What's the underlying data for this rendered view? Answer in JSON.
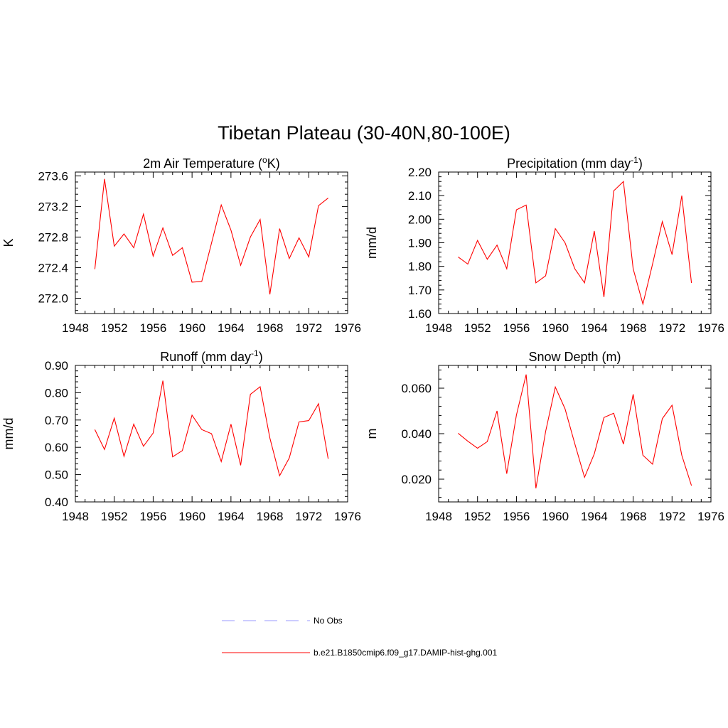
{
  "figure": {
    "title": "Tibetan Plateau (30-40N,80-100E)"
  },
  "legend": {
    "placement": "bottom-center",
    "items": [
      {
        "label": "No Obs",
        "color": "#9999ff",
        "dash": true
      },
      {
        "label": "b.e21.B1850cmip6.f09_g17.DAMIP-hist-ghg.001",
        "color": "#ff0000",
        "dash": false
      }
    ]
  },
  "chart_data": [
    {
      "type": "line",
      "title": "2m Air Temperature (oK)",
      "title_parts": {
        "pre": "2m Air Temperature (",
        "sup": "o",
        "post": "K)"
      },
      "ylabel": "K",
      "xlim": [
        1948,
        1976
      ],
      "ylim": [
        271.8,
        273.65
      ],
      "x_ticks": [
        1948,
        1952,
        1956,
        1960,
        1964,
        1968,
        1972,
        1976
      ],
      "x_tick_labels": [
        "1948",
        "1952",
        "1956",
        "1960",
        "1964",
        "1968",
        "1972",
        "1976"
      ],
      "y_ticks": [
        272.0,
        272.4,
        272.8,
        273.2,
        273.6
      ],
      "y_tick_labels": [
        "272.0",
        "272.4",
        "272.8",
        "273.2",
        "273.6"
      ],
      "color": "#ff0000",
      "x": [
        1950,
        1951,
        1952,
        1953,
        1954,
        1955,
        1956,
        1957,
        1958,
        1959,
        1960,
        1961,
        1962,
        1963,
        1964,
        1965,
        1966,
        1967,
        1968,
        1969,
        1970,
        1971,
        1972,
        1973,
        1974
      ],
      "y": [
        272.38,
        273.56,
        272.68,
        272.84,
        272.66,
        273.1,
        272.55,
        272.92,
        272.56,
        272.66,
        272.21,
        272.22,
        272.72,
        273.22,
        272.89,
        272.43,
        272.8,
        273.03,
        272.05,
        272.91,
        272.52,
        272.79,
        272.54,
        273.21,
        273.31
      ]
    },
    {
      "type": "line",
      "title": "Precipitation (mm day-1)",
      "title_parts": {
        "pre": "Precipitation (mm day",
        "sup": "-1",
        "post": ")"
      },
      "ylabel": "mm/d",
      "xlim": [
        1948,
        1976
      ],
      "ylim": [
        1.6,
        2.2
      ],
      "x_ticks": [
        1948,
        1952,
        1956,
        1960,
        1964,
        1968,
        1972,
        1976
      ],
      "x_tick_labels": [
        "1948",
        "1952",
        "1956",
        "1960",
        "1964",
        "1968",
        "1972",
        "1976"
      ],
      "y_ticks": [
        1.6,
        1.7,
        1.8,
        1.9,
        2.0,
        2.1,
        2.2
      ],
      "y_tick_labels": [
        "1.60",
        "1.70",
        "1.80",
        "1.90",
        "2.00",
        "2.10",
        "2.20"
      ],
      "color": "#ff0000",
      "x": [
        1950,
        1951,
        1952,
        1953,
        1954,
        1955,
        1956,
        1957,
        1958,
        1959,
        1960,
        1961,
        1962,
        1963,
        1964,
        1965,
        1966,
        1967,
        1968,
        1969,
        1970,
        1971,
        1972,
        1973,
        1974
      ],
      "y": [
        1.84,
        1.81,
        1.91,
        1.83,
        1.89,
        1.79,
        2.04,
        2.06,
        1.73,
        1.76,
        1.96,
        1.9,
        1.79,
        1.73,
        1.95,
        1.67,
        2.12,
        2.16,
        1.79,
        1.64,
        1.81,
        1.99,
        1.85,
        2.1,
        1.73
      ]
    },
    {
      "type": "line",
      "title": "Runoff (mm day-1)",
      "title_parts": {
        "pre": "Runoff (mm day",
        "sup": "-1",
        "post": ")"
      },
      "ylabel": "mm/d",
      "xlim": [
        1948,
        1976
      ],
      "ylim": [
        0.4,
        0.9
      ],
      "x_ticks": [
        1948,
        1952,
        1956,
        1960,
        1964,
        1968,
        1972,
        1976
      ],
      "x_tick_labels": [
        "1948",
        "1952",
        "1956",
        "1960",
        "1964",
        "1968",
        "1972",
        "1976"
      ],
      "y_ticks": [
        0.4,
        0.5,
        0.6,
        0.7,
        0.8,
        0.9
      ],
      "y_tick_labels": [
        "0.40",
        "0.50",
        "0.60",
        "0.70",
        "0.80",
        "0.90"
      ],
      "color": "#ff0000",
      "x": [
        1950,
        1951,
        1952,
        1953,
        1954,
        1955,
        1956,
        1957,
        1958,
        1959,
        1960,
        1961,
        1962,
        1963,
        1964,
        1965,
        1966,
        1967,
        1968,
        1969,
        1970,
        1971,
        1972,
        1973,
        1974
      ],
      "y": [
        0.665,
        0.592,
        0.707,
        0.567,
        0.685,
        0.604,
        0.652,
        0.844,
        0.565,
        0.588,
        0.718,
        0.665,
        0.65,
        0.548,
        0.685,
        0.534,
        0.794,
        0.822,
        0.634,
        0.496,
        0.561,
        0.693,
        0.698,
        0.76,
        0.558
      ]
    },
    {
      "type": "line",
      "title": "Snow Depth (m)",
      "title_parts": {
        "pre": "Snow Depth (m)",
        "sup": "",
        "post": ""
      },
      "ylabel": "m",
      "xlim": [
        1948,
        1976
      ],
      "ylim": [
        0.01,
        0.07
      ],
      "x_ticks": [
        1948,
        1952,
        1956,
        1960,
        1964,
        1968,
        1972,
        1976
      ],
      "x_tick_labels": [
        "1948",
        "1952",
        "1956",
        "1960",
        "1964",
        "1968",
        "1972",
        "1976"
      ],
      "y_ticks": [
        0.02,
        0.04,
        0.06
      ],
      "y_tick_labels": [
        "0.020",
        "0.040",
        "0.060"
      ],
      "color": "#ff0000",
      "x": [
        1950,
        1951,
        1952,
        1953,
        1954,
        1955,
        1956,
        1957,
        1958,
        1959,
        1960,
        1961,
        1962,
        1963,
        1964,
        1965,
        1966,
        1967,
        1968,
        1969,
        1970,
        1971,
        1972,
        1973,
        1974
      ],
      "y": [
        0.0402,
        0.0367,
        0.0336,
        0.0365,
        0.05,
        0.0224,
        0.0482,
        0.066,
        0.016,
        0.041,
        0.0605,
        0.0509,
        0.0356,
        0.0208,
        0.0311,
        0.0471,
        0.049,
        0.0354,
        0.0573,
        0.0305,
        0.0266,
        0.0466,
        0.0525,
        0.0305,
        0.0172
      ]
    }
  ]
}
